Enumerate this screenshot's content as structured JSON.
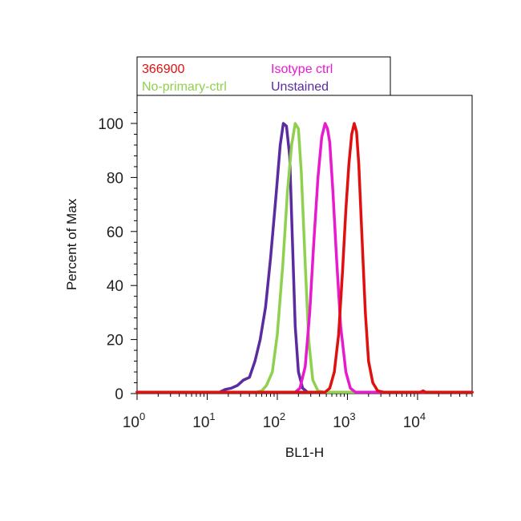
{
  "chart_data": {
    "type": "line",
    "xlabel": "BL1-H",
    "ylabel": "Percent of Max",
    "xscale": "log",
    "xlim": [
      1,
      60000
    ],
    "ylim": [
      0,
      108
    ],
    "grid": false,
    "legend_placement": "top",
    "x_ticks": [
      {
        "base": "10",
        "exp": "0",
        "value": 1
      },
      {
        "base": "10",
        "exp": "1",
        "value": 10
      },
      {
        "base": "10",
        "exp": "2",
        "value": 100
      },
      {
        "base": "10",
        "exp": "3",
        "value": 1000
      },
      {
        "base": "10",
        "exp": "4",
        "value": 10000
      }
    ],
    "y_ticks": [
      "0",
      "20",
      "40",
      "60",
      "80",
      "100"
    ],
    "series": [
      {
        "name": "Unstained",
        "color": "#5b2c9f",
        "x": [
          1,
          15,
          18,
          22,
          27,
          33,
          40,
          48,
          57,
          68,
          80,
          95,
          110,
          122,
          135,
          150,
          165,
          180,
          200,
          230,
          270,
          320,
          60000
        ],
        "y": [
          0.5,
          0.5,
          1.5,
          2,
          3,
          5,
          6,
          12,
          20,
          32,
          50,
          72,
          92,
          100,
          99,
          88,
          55,
          25,
          8,
          2,
          0.5,
          0.5,
          0.5
        ]
      },
      {
        "name": "No-primary-ctrl",
        "color": "#8fd14f",
        "x": [
          1,
          50,
          60,
          70,
          85,
          100,
          120,
          140,
          160,
          180,
          200,
          220,
          250,
          280,
          320,
          380,
          460,
          60000
        ],
        "y": [
          0.5,
          0.5,
          1,
          3,
          8,
          22,
          48,
          75,
          92,
          100,
          98,
          82,
          48,
          20,
          5,
          1,
          0.5,
          0.5
        ]
      },
      {
        "name": "Isotype ctrl",
        "color": "#e81ad0",
        "x": [
          1,
          180,
          210,
          250,
          290,
          330,
          380,
          430,
          480,
          520,
          560,
          620,
          700,
          800,
          950,
          1100,
          1300,
          60000
        ],
        "y": [
          0.5,
          0.5,
          2,
          10,
          30,
          55,
          80,
          95,
          100,
          98,
          93,
          75,
          50,
          25,
          8,
          2,
          0.5,
          0.5
        ]
      },
      {
        "name": "366900",
        "color": "#e01010",
        "x": [
          1,
          480,
          560,
          650,
          750,
          850,
          950,
          1050,
          1150,
          1250,
          1350,
          1450,
          1600,
          1800,
          2000,
          2300,
          2700,
          3300,
          11000,
          12000,
          13000,
          60000
        ],
        "y": [
          0.5,
          0.5,
          2,
          8,
          22,
          45,
          68,
          85,
          96,
          100,
          97,
          85,
          60,
          30,
          12,
          4,
          1,
          0.5,
          0.5,
          1,
          0.5,
          0.5
        ]
      }
    ],
    "legend": {
      "row1": [
        {
          "label": "366900",
          "color": "#e01010"
        },
        {
          "label": "Isotype ctrl",
          "color": "#e81ad0"
        }
      ],
      "row2": [
        {
          "label": "No-primary-ctrl",
          "color": "#8fd14f"
        },
        {
          "label": "Unstained",
          "color": "#5b2c9f"
        }
      ]
    }
  }
}
